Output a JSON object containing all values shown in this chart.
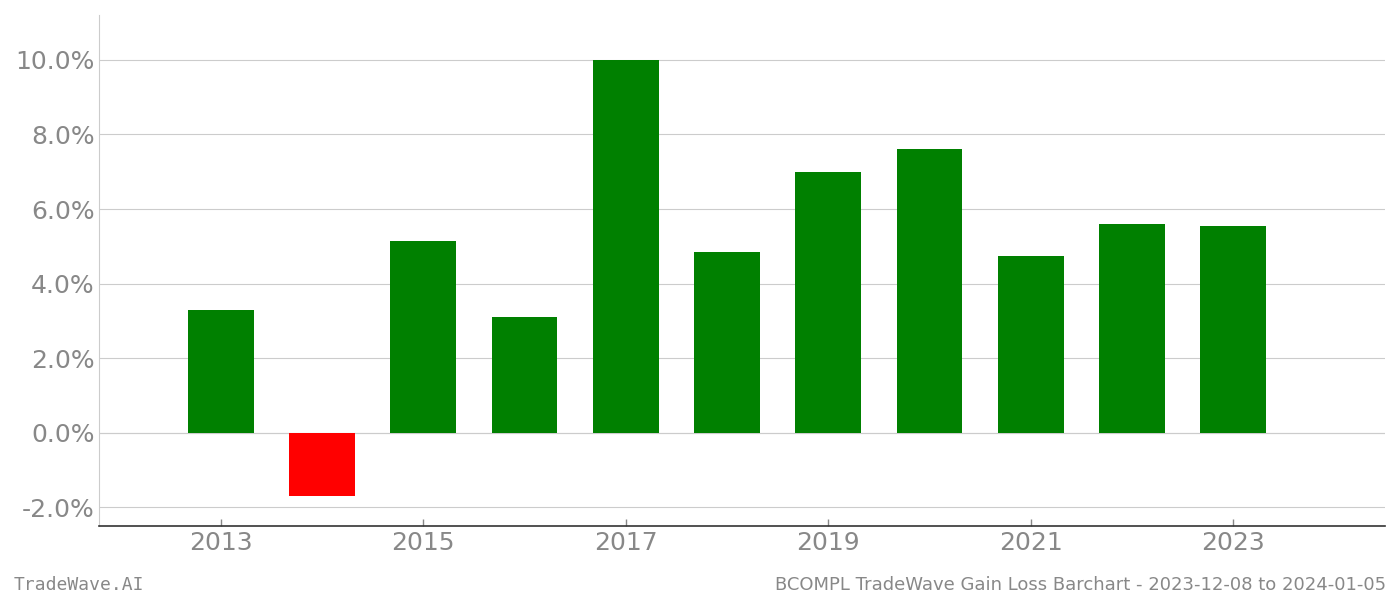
{
  "years": [
    2013,
    2014,
    2015,
    2016,
    2017,
    2018,
    2019,
    2020,
    2021,
    2022,
    2023
  ],
  "values": [
    3.3,
    -1.7,
    5.15,
    3.1,
    10.0,
    4.85,
    7.0,
    7.6,
    4.75,
    5.6,
    5.55
  ],
  "bar_colors": [
    "#008000",
    "#ff0000",
    "#008000",
    "#008000",
    "#008000",
    "#008000",
    "#008000",
    "#008000",
    "#008000",
    "#008000",
    "#008000"
  ],
  "ylim": [
    -2.5,
    11.2
  ],
  "yticks": [
    -2.0,
    0.0,
    2.0,
    4.0,
    6.0,
    8.0,
    10.0
  ],
  "xtick_years": [
    2013,
    2015,
    2017,
    2019,
    2021,
    2023
  ],
  "xlim": [
    2011.8,
    2024.5
  ],
  "footer_left": "TradeWave.AI",
  "footer_right": "BCOMPL TradeWave Gain Loss Barchart - 2023-12-08 to 2024-01-05",
  "background_color": "#ffffff",
  "grid_color": "#cccccc",
  "bar_width": 0.65,
  "spine_color": "#aaaaaa",
  "tick_label_color": "#888888",
  "tick_fontsize": 18,
  "footer_fontsize": 13
}
